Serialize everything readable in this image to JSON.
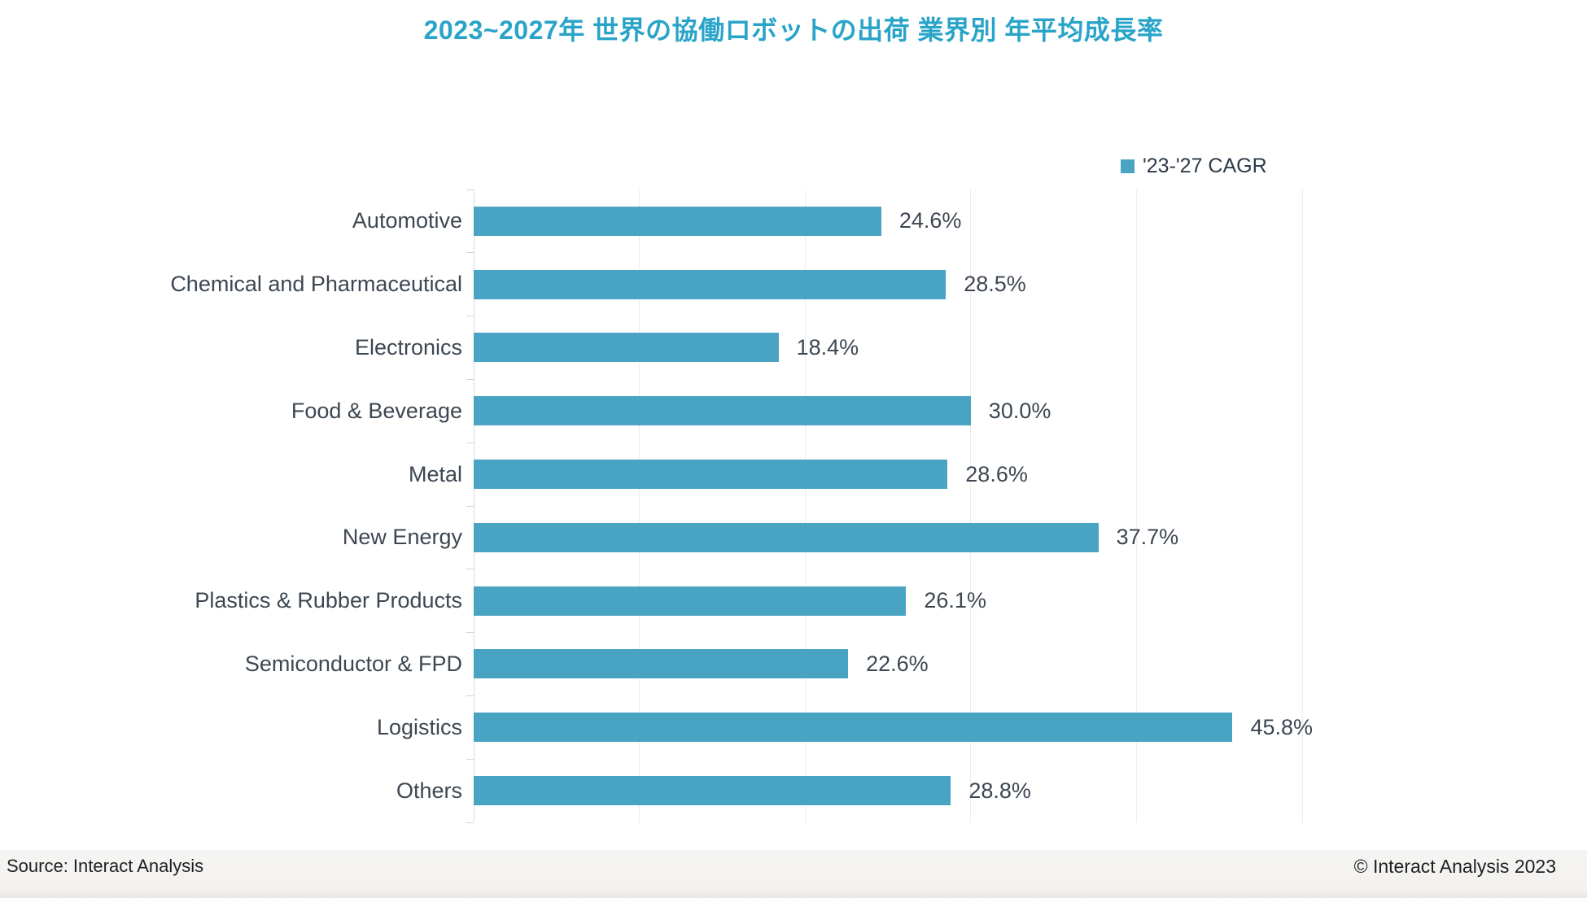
{
  "title": "2023~2027年 世界の協働ロボットの出荷 業界別 年平均成長率",
  "legend": {
    "label": "'23-'27 CAGR",
    "swatch_color": "#49a3c2"
  },
  "chart_data": {
    "type": "bar",
    "orientation": "horizontal",
    "title": "2023~2027年 世界の協働ロボットの出荷 業界別 年平均成長率",
    "series_name": "'23-'27 CAGR",
    "categories": [
      "Automotive",
      "Chemical and Pharmaceutical",
      "Electronics",
      "Food & Beverage",
      "Metal",
      "New Energy",
      "Plastics & Rubber Products",
      "Semiconductor & FPD",
      "Logistics",
      "Others"
    ],
    "values": [
      24.6,
      28.5,
      18.4,
      30.0,
      28.6,
      37.7,
      26.1,
      22.6,
      45.8,
      28.8
    ],
    "value_labels": [
      "24.6%",
      "28.5%",
      "18.4%",
      "30.0%",
      "28.6%",
      "37.7%",
      "26.1%",
      "22.6%",
      "45.8%",
      "28.8%"
    ],
    "xlabel": "",
    "ylabel": "",
    "xlim": [
      0,
      50
    ],
    "xticks": [
      0,
      10,
      20,
      30,
      40,
      50
    ],
    "grid": "vertical-light",
    "bar_color": "#49a3c2",
    "legend_position": "top-right"
  },
  "footer": {
    "source": "Source: Interact Analysis",
    "copyright": "© Interact Analysis 2023"
  },
  "colors": {
    "title": "#29a4c8",
    "bar": "#49a3c2",
    "label_text": "#3d4752",
    "legend_text": "#2d3a49",
    "gridline": "#ededed",
    "axis": "#dcdcdc",
    "footer_bg": "#f4f3f1",
    "footer_text": "#1f1f1f"
  }
}
